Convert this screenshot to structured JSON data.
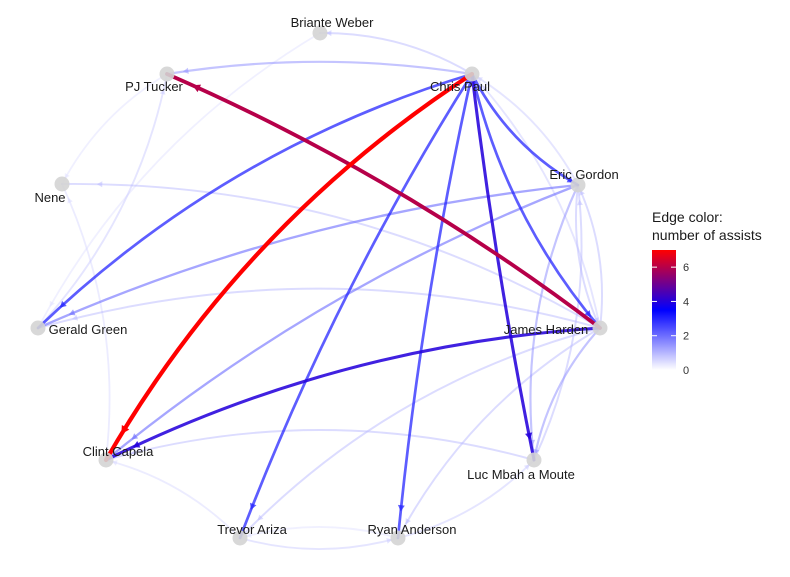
{
  "legend": {
    "title_line1": "Edge color:",
    "title_line2": "number of assists",
    "ticks": [
      "0",
      "2",
      "4",
      "6"
    ],
    "min": 0,
    "max": 7,
    "colors": {
      "low": "#ffffff",
      "mid": "#0000ff",
      "high": "#ff0000"
    }
  },
  "nodes": [
    {
      "id": "briante",
      "label": "Briante Weber"
    },
    {
      "id": "cp3",
      "label": "Chris Paul"
    },
    {
      "id": "pj",
      "label": "PJ Tucker"
    },
    {
      "id": "eric",
      "label": "Eric Gordon"
    },
    {
      "id": "nene",
      "label": "Nene"
    },
    {
      "id": "gerald",
      "label": "Gerald Green"
    },
    {
      "id": "harden",
      "label": "James Harden"
    },
    {
      "id": "capela",
      "label": "Clint Capela"
    },
    {
      "id": "luc",
      "label": "Luc Mbah a Moute"
    },
    {
      "id": "ariza",
      "label": "Trevor Ariza"
    },
    {
      "id": "ryan",
      "label": "Ryan Anderson"
    }
  ],
  "edges": [
    {
      "from": "cp3",
      "to": "capela",
      "assists": 7
    },
    {
      "from": "harden",
      "to": "pj",
      "assists": 6
    },
    {
      "from": "harden",
      "to": "capela",
      "assists": 4
    },
    {
      "from": "cp3",
      "to": "luc",
      "assists": 4
    },
    {
      "from": "cp3",
      "to": "eric",
      "assists": 3
    },
    {
      "from": "cp3",
      "to": "harden",
      "assists": 3
    },
    {
      "from": "cp3",
      "to": "ariza",
      "assists": 3
    },
    {
      "from": "cp3",
      "to": "ryan",
      "assists": 3
    },
    {
      "from": "cp3",
      "to": "gerald",
      "assists": 3
    },
    {
      "from": "cp3",
      "to": "capela",
      "assists": 2.5
    },
    {
      "from": "eric",
      "to": "gerald",
      "assists": 2
    },
    {
      "from": "eric",
      "to": "capela",
      "assists": 2
    },
    {
      "from": "cp3",
      "to": "pj",
      "assists": 1.5
    },
    {
      "from": "cp3",
      "to": "briante",
      "assists": 1
    },
    {
      "from": "eric",
      "to": "harden",
      "assists": 1
    },
    {
      "from": "eric",
      "to": "luc",
      "assists": 1.5
    },
    {
      "from": "harden",
      "to": "luc",
      "assists": 1.5
    },
    {
      "from": "harden",
      "to": "ryan",
      "assists": 1
    },
    {
      "from": "harden",
      "to": "ariza",
      "assists": 1
    },
    {
      "from": "harden",
      "to": "nene",
      "assists": 1
    },
    {
      "from": "harden",
      "to": "gerald",
      "assists": 1
    },
    {
      "from": "harden",
      "to": "eric",
      "assists": 1
    },
    {
      "from": "luc",
      "to": "eric",
      "assists": 1
    },
    {
      "from": "luc",
      "to": "capela",
      "assists": 1
    },
    {
      "from": "gerald",
      "to": "pj",
      "assists": 0.8
    },
    {
      "from": "capela",
      "to": "nene",
      "assists": 0.6
    },
    {
      "from": "ariza",
      "to": "ryan",
      "assists": 0.8
    },
    {
      "from": "ryan",
      "to": "luc",
      "assists": 0.8
    },
    {
      "from": "ariza",
      "to": "capela",
      "assists": 0.6
    },
    {
      "from": "briante",
      "to": "gerald",
      "assists": 0.5
    },
    {
      "from": "pj",
      "to": "nene",
      "assists": 0.5
    },
    {
      "from": "harden",
      "to": "cp3",
      "assists": 0.8
    },
    {
      "from": "ryan",
      "to": "ariza",
      "assists": 0.5
    },
    {
      "from": "eric",
      "to": "cp3",
      "assists": 0.8
    }
  ]
}
